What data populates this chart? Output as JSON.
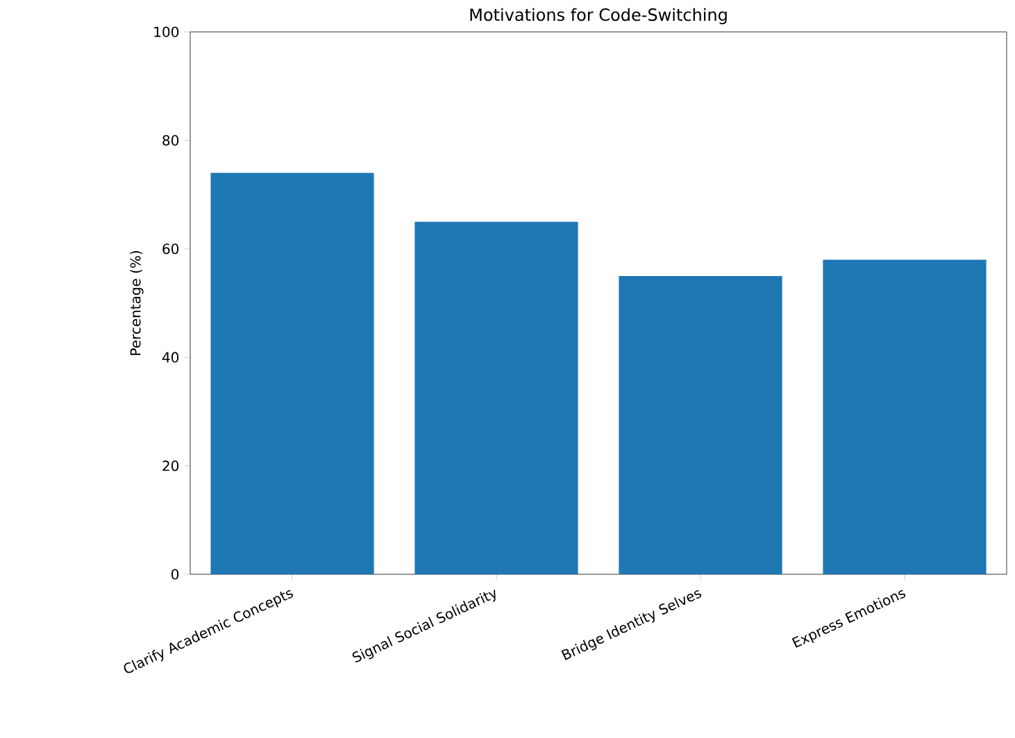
{
  "chart_data": {
    "type": "bar",
    "title": "Motivations for Code-Switching",
    "ylabel": "Percentage (%)",
    "categories": [
      "Clarify Academic Concepts",
      "Signal Social Solidarity",
      "Bridge Identity Selves",
      "Express Emotions"
    ],
    "values": [
      74,
      65,
      55,
      58
    ],
    "color": "#1f77b4",
    "ylim": [
      0,
      100
    ],
    "yticks": [
      0,
      20,
      40,
      60,
      80,
      100
    ]
  }
}
